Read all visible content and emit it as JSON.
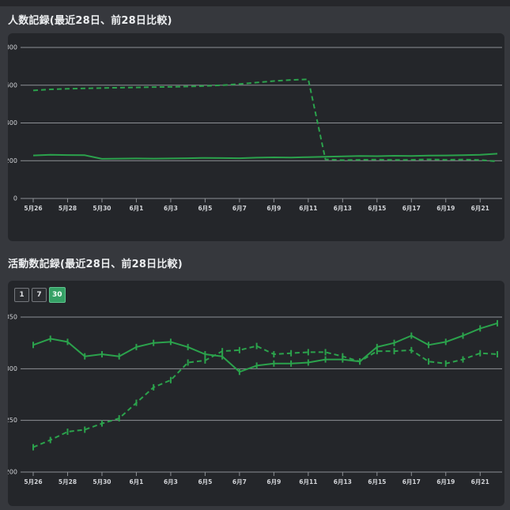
{
  "page": {
    "background": "#36383d",
    "top_strip_color": "#26272b",
    "card_color": "#24262a"
  },
  "colors": {
    "line_green": "#2ba24c",
    "grid_gray": "#8d9095",
    "tick_label": "#d2d4d8",
    "selected_button_bg": "#35a065"
  },
  "chart_data": [
    {
      "type": "line",
      "title": "人数記録(最近28日、前28日比較)",
      "grid": true,
      "legend": "none",
      "markers": false,
      "line_color": "#2ba24c",
      "grid_color": "#8d9095",
      "tick_color": "#d2d4d8",
      "ylim": [
        0,
        800
      ],
      "yticks": [
        0,
        200,
        400,
        600,
        800
      ],
      "x_tick_labels": [
        "5月26",
        "5月28",
        "5月30",
        "6月1",
        "6月3",
        "6月5",
        "6月7",
        "6月9",
        "6月11",
        "6月13",
        "6月15",
        "6月17",
        "6月19",
        "6月21"
      ],
      "series": [
        {
          "name": "最近28日",
          "style": "solid",
          "values": [
            228,
            231,
            230,
            229,
            210,
            211,
            212,
            211,
            212,
            213,
            215,
            214,
            213,
            216,
            218,
            217,
            219,
            221,
            223,
            225,
            224,
            226,
            225,
            227,
            228,
            229,
            231,
            237
          ]
        },
        {
          "name": "前28日",
          "style": "dashed",
          "values": [
            572,
            578,
            581,
            583,
            585,
            587,
            588,
            590,
            591,
            593,
            596,
            600,
            606,
            614,
            622,
            628,
            631,
            207,
            203,
            205,
            206,
            204,
            205,
            207,
            205,
            206,
            204,
            196
          ]
        }
      ]
    },
    {
      "type": "line",
      "title": "活動数記録(最近28日、前28日比較)",
      "grid": true,
      "legend": "none",
      "markers": true,
      "line_color": "#2ba24c",
      "grid_color": "#8d9095",
      "tick_color": "#d2d4d8",
      "ylim": [
        200,
        350
      ],
      "yticks": [
        200,
        250,
        300,
        350
      ],
      "x_tick_labels": [
        "5月26",
        "5月28",
        "5月30",
        "6月1",
        "6月3",
        "6月5",
        "6月7",
        "6月9",
        "6月11",
        "6月13",
        "6月15",
        "6月17",
        "6月19",
        "6月21"
      ],
      "range_buttons": [
        {
          "label": "1",
          "selected": false
        },
        {
          "label": "7",
          "selected": false
        },
        {
          "label": "30",
          "selected": true
        }
      ],
      "series": [
        {
          "name": "最近28日",
          "style": "solid",
          "values": [
            323,
            329,
            326,
            312,
            314,
            312,
            321,
            325,
            326,
            321,
            314,
            312,
            297,
            303,
            305,
            305,
            306,
            309,
            309,
            307,
            321,
            325,
            332,
            323,
            326,
            332,
            339,
            344
          ]
        },
        {
          "name": "前28日",
          "style": "dashed",
          "values": [
            224,
            231,
            239,
            241,
            247,
            252,
            267,
            282,
            289,
            306,
            308,
            317,
            318,
            322,
            314,
            315,
            316,
            316,
            312,
            307,
            317,
            317,
            318,
            307,
            305,
            309,
            315,
            314
          ]
        }
      ]
    }
  ]
}
